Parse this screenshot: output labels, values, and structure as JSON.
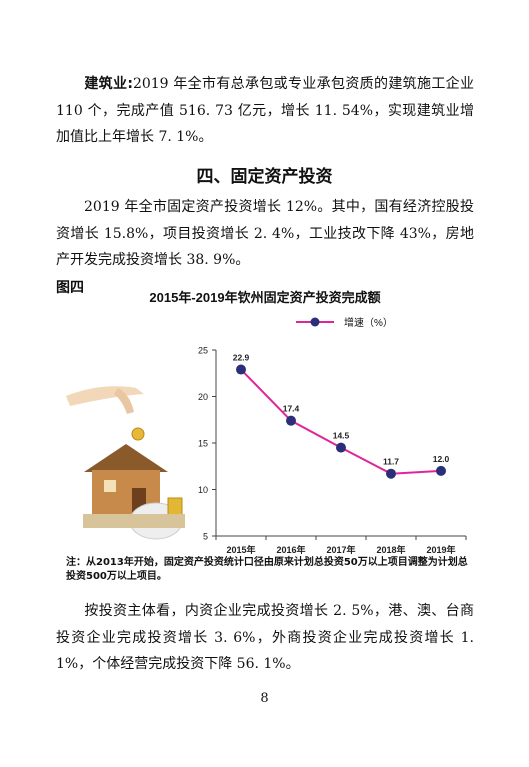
{
  "section_construction": {
    "lead": "建筑业:",
    "text": "2019 年全市有总承包或专业承包资质的建筑施工企业 110 个，完成产值 516. 73 亿元，增长 11. 54%，实现建筑业增加值比上年增长 7. 1%。"
  },
  "heading": "四、固定资产投资",
  "para_investment": "2019 年全市固定资产投资增长 12%。其中，国有经济控股投资增长 15.8%，项目投资增长 2. 4%，工业技改下降 43%，房地产开发完成投资增长 38. 9%。",
  "figure_label": "图四",
  "chart_data": {
    "type": "line",
    "title": "2015年-2019年钦州固定资产投资完成额",
    "categories": [
      "2015年",
      "2016年",
      "2017年",
      "2018年",
      "2019年"
    ],
    "series": [
      {
        "name": "增速（%）",
        "values": [
          22.9,
          17.4,
          14.5,
          11.7,
          12.0
        ],
        "labels": [
          "22.9",
          "17.4",
          "14.5",
          "11.7",
          "12.0"
        ]
      }
    ],
    "ylim": [
      5,
      25
    ],
    "yticks": [
      5,
      10,
      15,
      20,
      25
    ],
    "line_color": "#e0249a",
    "marker_color": "#2b2f7a",
    "legend_position": "top-right",
    "grid": false
  },
  "note": "注：从2013年开始，固定资产投资统计口径由原来计划总投资50万以上项目调整为计划总投资500万以上项目。",
  "para_subject": "按投资主体看，内资企业完成投资增长 2. 5%，港、澳、台商投资企业完成投资增长 3. 6%，外商投资企业完成投资增长 1. 1%，个体经营完成投资下降 56. 1%。",
  "page_number": "8"
}
